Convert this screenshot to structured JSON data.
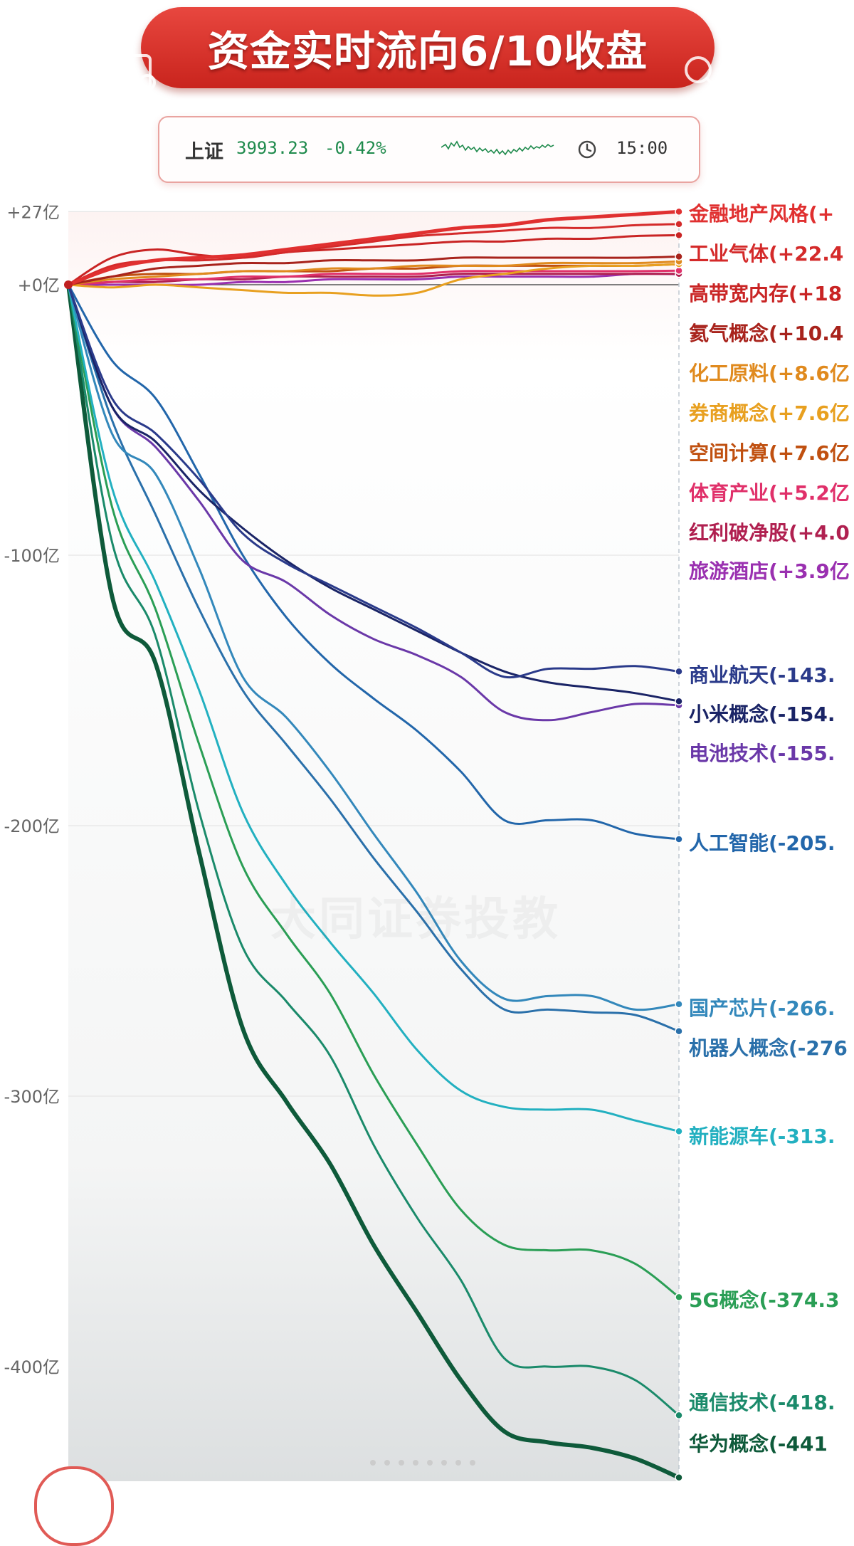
{
  "header": {
    "title": "资金实时流向6/10收盘",
    "icons": [
      "back-icon",
      "document-icon",
      "search-icon",
      "share-icon"
    ]
  },
  "index": {
    "name": "上证",
    "value": "3993.23",
    "change": "-0.42%",
    "time": "15:00",
    "color": "#1e8a4c"
  },
  "watermark": "大同证券投教",
  "chart_data": {
    "type": "line",
    "title": "",
    "xlabel": "",
    "ylabel": "",
    "ylim": [
      -442,
      27
    ],
    "y_ticks": [
      {
        "value": 27,
        "label": "+27亿"
      },
      {
        "value": 0,
        "label": "+0亿"
      },
      {
        "value": -100,
        "label": "-100亿"
      },
      {
        "value": -200,
        "label": "-200亿"
      },
      {
        "value": -300,
        "label": "-300亿"
      },
      {
        "value": -400,
        "label": "-400亿"
      }
    ],
    "grid": true,
    "legend": "right",
    "series": [
      {
        "name": "金融地产风格",
        "label": "金融地产风格(+",
        "color": "#e03030",
        "width": 5,
        "values": [
          0,
          6,
          9,
          10,
          11,
          13,
          15,
          17,
          19,
          21,
          22,
          24,
          25,
          26,
          27
        ]
      },
      {
        "name": "工业气体",
        "label": "工业气体(+22.4",
        "color": "#d42a2a",
        "width": 3,
        "values": [
          0,
          7,
          9,
          9,
          10,
          12,
          14,
          16,
          18,
          19,
          20,
          21,
          21,
          22,
          22.4
        ]
      },
      {
        "name": "高带宽内存",
        "label": "高带宽内存(+18",
        "color": "#c92424",
        "width": 3,
        "values": [
          0,
          10,
          13,
          11,
          10,
          12,
          13,
          14,
          15,
          16,
          16,
          17,
          17,
          18,
          18.3
        ]
      },
      {
        "name": "氦气概念",
        "label": "氦气概念(+10.4",
        "color": "#a8231c",
        "width": 3,
        "values": [
          0,
          3,
          6,
          7,
          8,
          8,
          9,
          9,
          9,
          10,
          10,
          10,
          10,
          10,
          10.4
        ]
      },
      {
        "name": "化工原料",
        "label": "化工原料(+8.6亿",
        "color": "#e08a1e",
        "width": 3,
        "values": [
          0,
          2,
          3,
          4,
          5,
          5,
          6,
          6,
          7,
          7,
          7,
          8,
          8,
          8,
          8.6
        ]
      },
      {
        "name": "券商概念",
        "label": "券商概念(+7.6亿",
        "color": "#e8a020",
        "width": 3,
        "values": [
          0,
          -1,
          0,
          -1,
          -2,
          -3,
          -3,
          -4,
          -3,
          2,
          4,
          6,
          7,
          7,
          7.6
        ]
      },
      {
        "name": "空间计算",
        "label": "空间计算(+7.6亿",
        "color": "#c05010",
        "width": 3,
        "values": [
          0,
          3,
          4,
          4,
          5,
          5,
          5,
          6,
          6,
          7,
          7,
          7,
          7,
          7,
          7.6
        ]
      },
      {
        "name": "体育产业",
        "label": "体育产业(+5.2亿",
        "color": "#e0306a",
        "width": 3,
        "values": [
          0,
          1,
          2,
          2,
          3,
          3,
          4,
          4,
          4,
          5,
          5,
          5,
          5,
          5,
          5.2
        ]
      },
      {
        "name": "红利破净股",
        "label": "红利破净股(+4.0",
        "color": "#b02050",
        "width": 3,
        "values": [
          0,
          1,
          1,
          2,
          2,
          3,
          3,
          3,
          3,
          4,
          4,
          4,
          4,
          4,
          4.0
        ]
      },
      {
        "name": "旅游酒店",
        "label": "旅游酒店(+3.9亿",
        "color": "#9a30b0",
        "width": 3,
        "values": [
          0,
          0,
          0,
          0,
          1,
          1,
          2,
          2,
          2,
          3,
          3,
          3,
          3,
          4,
          3.9
        ]
      },
      {
        "name": "商业航天",
        "label": "商业航天(-143.",
        "color": "#2a3a8a",
        "width": 3,
        "values": [
          0,
          -42,
          -55,
          -72,
          -92,
          -103,
          -111,
          -119,
          -127,
          -136,
          -145,
          -142,
          -142,
          -141,
          -143
        ]
      },
      {
        "name": "小米概念",
        "label": "小米概念(-154.",
        "color": "#1a2466",
        "width": 3,
        "values": [
          0,
          -45,
          -58,
          -76,
          -90,
          -102,
          -112,
          -120,
          -128,
          -136,
          -143,
          -147,
          -149,
          -151,
          -154
        ]
      },
      {
        "name": "电池技术",
        "label": "电池技术(-155.",
        "color": "#6a38a8",
        "width": 3,
        "values": [
          0,
          -45,
          -60,
          -80,
          -102,
          -110,
          -122,
          -131,
          -137,
          -145,
          -158,
          -161,
          -158,
          -155,
          -155.5
        ]
      },
      {
        "name": "人工智能",
        "label": "人工智能(-205.",
        "color": "#2266aa",
        "width": 3,
        "values": [
          0,
          -28,
          -42,
          -70,
          -100,
          -123,
          -140,
          -153,
          -165,
          -180,
          -198,
          -198,
          -198,
          -203,
          -205
        ]
      },
      {
        "name": "国产芯片",
        "label": "国产芯片(-266.",
        "color": "#3388bb",
        "width": 3,
        "values": [
          0,
          -55,
          -70,
          -105,
          -145,
          -160,
          -180,
          -203,
          -225,
          -250,
          -264,
          -263,
          -263,
          -268,
          -266
        ]
      },
      {
        "name": "机器人概念",
        "label": "机器人概念(-276",
        "color": "#2a70aa",
        "width": 3,
        "values": [
          0,
          -50,
          -85,
          -120,
          -150,
          -170,
          -190,
          -212,
          -232,
          -253,
          -268,
          -268,
          -269,
          -270,
          -276
        ]
      },
      {
        "name": "新能源车",
        "label": "新能源车(-313.",
        "color": "#22b0c0",
        "width": 3,
        "values": [
          0,
          -75,
          -110,
          -150,
          -195,
          -222,
          -243,
          -262,
          -283,
          -298,
          -304,
          -305,
          -305,
          -309,
          -313
        ]
      },
      {
        "name": "5G概念",
        "label": "5G概念(-374.3",
        "color": "#2a9e55",
        "width": 3,
        "values": [
          0,
          -82,
          -120,
          -170,
          -215,
          -240,
          -262,
          -292,
          -318,
          -342,
          -355,
          -357,
          -357,
          -362,
          -374.3
        ]
      },
      {
        "name": "通信技术",
        "label": "通信技术(-418.",
        "color": "#1a8a6a",
        "width": 3,
        "values": [
          0,
          -95,
          -130,
          -195,
          -245,
          -265,
          -285,
          -318,
          -345,
          -368,
          -397,
          -400,
          -400,
          -405,
          -418
        ]
      },
      {
        "name": "华为概念",
        "label": "华为概念(-441",
        "color": "#0e5a3a",
        "width": 6,
        "values": [
          0,
          -115,
          -140,
          -210,
          -275,
          -302,
          -325,
          -355,
          -380,
          -405,
          -424,
          -428,
          -430,
          -434,
          -441
        ]
      }
    ]
  }
}
